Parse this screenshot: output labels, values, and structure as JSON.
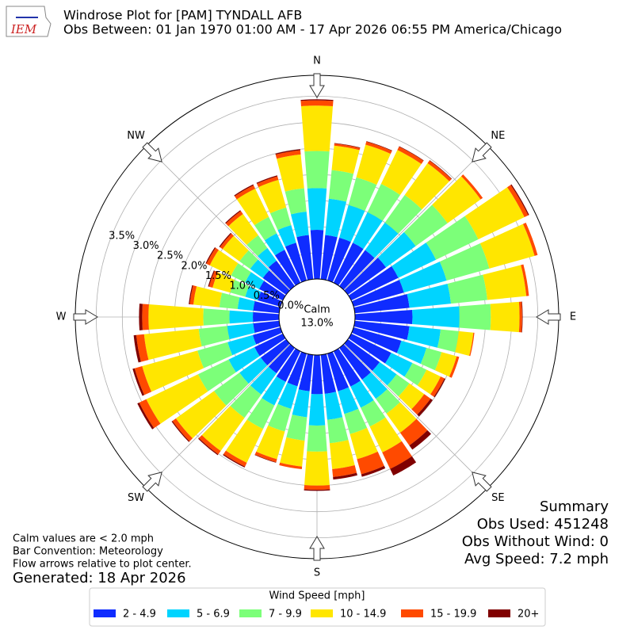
{
  "chart_data": {
    "type": "windrose",
    "logo_text": "IEM",
    "title": "Windrose Plot for [PAM] TYNDALL AFB",
    "subtitle": "Obs Between: 01 Jan 1970 01:00 AM - 17 Apr 2026 06:55 PM America/Chicago",
    "x": [
      0,
      10,
      20,
      30,
      40,
      50,
      60,
      70,
      80,
      90,
      100,
      110,
      120,
      130,
      140,
      150,
      160,
      170,
      180,
      190,
      200,
      210,
      220,
      230,
      240,
      250,
      260,
      270,
      280,
      290,
      300,
      310,
      320,
      330,
      340,
      350
    ],
    "xticks": [
      {
        "value": 0,
        "label": "N"
      },
      {
        "value": 45,
        "label": "NE"
      },
      {
        "value": 90,
        "label": "E"
      },
      {
        "value": 135,
        "label": "SE"
      },
      {
        "value": 180,
        "label": "S"
      },
      {
        "value": 225,
        "label": "SW"
      },
      {
        "value": 270,
        "label": "W"
      },
      {
        "value": 315,
        "label": "NW"
      }
    ],
    "rlim": [
      0,
      3.9
    ],
    "rticks": [
      {
        "value": 0,
        "label": "0.0%"
      },
      {
        "value": 0.5,
        "label": "0.5%"
      },
      {
        "value": 1,
        "label": "1.0%"
      },
      {
        "value": 1.5,
        "label": "1.5%"
      },
      {
        "value": 2,
        "label": "2.0%"
      },
      {
        "value": 2.5,
        "label": "2.5%"
      },
      {
        "value": 3,
        "label": "3.0%"
      },
      {
        "value": 3.5,
        "label": "3.5%"
      }
    ],
    "grid": true,
    "calm_text": [
      "Calm",
      "13.0%"
    ],
    "legend_title": "Wind Speed [mph]",
    "series": [
      {
        "name": "2 - 4.9",
        "color": "#0f2cff",
        "values": [
          0.94,
          0.85,
          0.85,
          0.85,
          0.85,
          0.9,
          1.0,
          1.0,
          1.05,
          1.1,
          1.05,
          0.95,
          0.85,
          0.75,
          0.75,
          0.75,
          0.75,
          0.75,
          0.75,
          0.7,
          0.65,
          0.65,
          0.6,
          0.6,
          0.6,
          0.55,
          0.5,
          0.5,
          0.5,
          0.45,
          0.5,
          0.55,
          0.6,
          0.7,
          0.75,
          0.85
        ]
      },
      {
        "name": "5 - 6.9",
        "color": "#00d4ff",
        "values": [
          0.8,
          0.7,
          0.65,
          0.65,
          0.65,
          0.7,
          0.8,
          0.85,
          0.8,
          0.9,
          0.6,
          0.5,
          0.45,
          0.4,
          0.45,
          0.45,
          0.45,
          0.5,
          0.6,
          0.5,
          0.45,
          0.5,
          0.5,
          0.5,
          0.55,
          0.5,
          0.5,
          0.45,
          0.3,
          0.25,
          0.3,
          0.3,
          0.3,
          0.35,
          0.35,
          0.45
        ]
      },
      {
        "name": "7 - 9.9",
        "color": "#7cff79",
        "values": [
          0.71,
          0.55,
          0.55,
          0.6,
          0.65,
          0.75,
          0.9,
          0.85,
          0.7,
          0.6,
          0.35,
          0.3,
          0.3,
          0.3,
          0.35,
          0.4,
          0.4,
          0.45,
          0.5,
          0.45,
          0.45,
          0.5,
          0.55,
          0.6,
          0.65,
          0.6,
          0.55,
          0.5,
          0.35,
          0.3,
          0.3,
          0.25,
          0.3,
          0.35,
          0.35,
          0.45
        ]
      },
      {
        "name": "10 - 14.9",
        "color": "#ffe600",
        "values": [
          0.87,
          0.47,
          0.65,
          0.72,
          0.75,
          0.78,
          0.98,
          0.9,
          0.75,
          0.55,
          0.28,
          0.3,
          0.3,
          0.35,
          0.45,
          0.55,
          0.5,
          0.5,
          0.65,
          0.5,
          0.55,
          0.72,
          0.78,
          0.9,
          1.1,
          1.1,
          1.05,
          1.05,
          0.5,
          0.35,
          0.45,
          0.4,
          0.5,
          0.6,
          0.55,
          0.65
        ]
      },
      {
        "name": "15 - 19.9",
        "color": "#ff4a00",
        "values": [
          0.1,
          0.04,
          0.06,
          0.07,
          0.06,
          0.05,
          0.08,
          0.06,
          0.05,
          0.05,
          0.02,
          0.05,
          0.08,
          0.15,
          0.3,
          0.35,
          0.3,
          0.15,
          0.08,
          0.05,
          0.06,
          0.08,
          0.08,
          0.08,
          0.15,
          0.15,
          0.15,
          0.12,
          0.07,
          0.07,
          0.07,
          0.06,
          0.07,
          0.07,
          0.07,
          0.08
        ]
      },
      {
        "name": "20+",
        "color": "#800000",
        "values": [
          0.02,
          0.01,
          0.01,
          0.01,
          0.01,
          0,
          0.02,
          0,
          0,
          0.01,
          0,
          0,
          0.02,
          0.05,
          0.1,
          0.14,
          0.05,
          0.05,
          0.02,
          0,
          0.01,
          0.02,
          0.02,
          0.02,
          0.04,
          0.04,
          0.05,
          0.06,
          0.02,
          0.02,
          0.02,
          0.02,
          0.02,
          0.02,
          0.02,
          0.02
        ]
      }
    ],
    "notes": [
      "Calm values are < 2.0 mph",
      "Bar Convention: Meteorology",
      "Flow arrows relative to plot center."
    ],
    "generated": "Generated: 18 Apr 2026",
    "summary": [
      "Summary",
      "Obs Used: 451248",
      "Obs Without Wind: 0",
      "Avg Speed: 7.2 mph"
    ]
  }
}
